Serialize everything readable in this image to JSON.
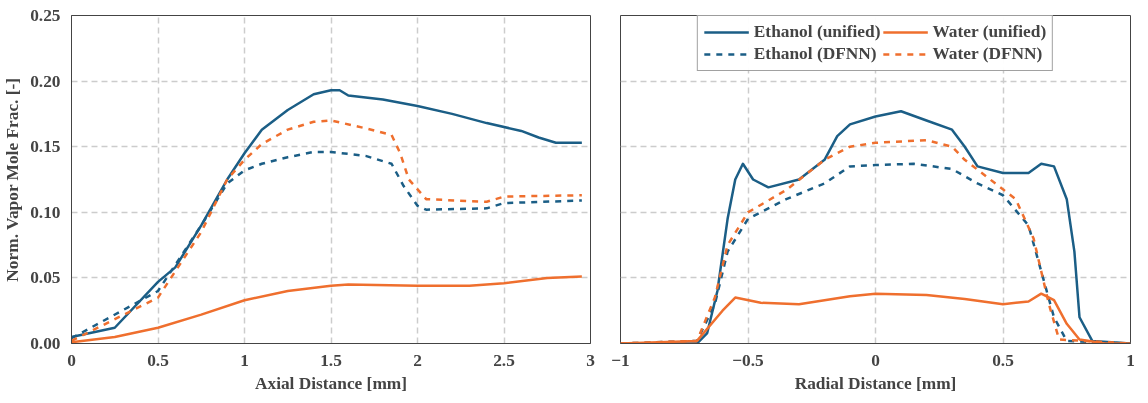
{
  "chart_data": [
    {
      "type": "line",
      "xlabel": "Axial Distance [mm]",
      "ylabel": "Norm. Vapor Mole Frac. [-]",
      "xlim": [
        0,
        3
      ],
      "xticks": [
        0,
        0.5,
        1,
        1.5,
        2,
        2.5,
        3
      ],
      "ylim": [
        0,
        0.25
      ],
      "yticks": [
        {
          "value": 0,
          "label": "0.00"
        },
        {
          "value": 0.05,
          "label": "0.05"
        },
        {
          "value": 0.1,
          "label": "0.10"
        },
        {
          "value": 0.15,
          "label": "0.15"
        },
        {
          "value": 0.2,
          "label": "0.20"
        },
        {
          "value": 0.25,
          "label": "0.25"
        }
      ],
      "grid": true,
      "legend": false,
      "series": [
        {
          "color": "#1b5e86",
          "line_style": "solid",
          "x": [
            0,
            0.25,
            0.5,
            0.6,
            0.75,
            0.9,
            1.0,
            1.1,
            1.25,
            1.4,
            1.5,
            1.55,
            1.6,
            1.8,
            2.0,
            2.2,
            2.4,
            2.6,
            2.7,
            2.8,
            2.95
          ],
          "values": [
            0.005,
            0.012,
            0.047,
            0.058,
            0.09,
            0.125,
            0.145,
            0.163,
            0.178,
            0.19,
            0.193,
            0.193,
            0.189,
            0.186,
            0.181,
            0.175,
            0.168,
            0.162,
            0.157,
            0.153,
            0.153
          ]
        },
        {
          "color": "#ef6f2e",
          "line_style": "solid",
          "x": [
            0,
            0.25,
            0.5,
            0.75,
            1.0,
            1.25,
            1.5,
            1.6,
            2.0,
            2.3,
            2.5,
            2.75,
            2.95
          ],
          "values": [
            0.001,
            0.005,
            0.012,
            0.022,
            0.033,
            0.04,
            0.044,
            0.045,
            0.044,
            0.044,
            0.046,
            0.05,
            0.051
          ]
        },
        {
          "color": "#1b5e86",
          "line_style": "dashed",
          "x": [
            0,
            0.5,
            0.75,
            0.9,
            1.0,
            1.1,
            1.25,
            1.4,
            1.5,
            1.7,
            1.85,
            1.92,
            2.0,
            2.05,
            2.4,
            2.5,
            2.95
          ],
          "values": [
            0.004,
            0.04,
            0.09,
            0.122,
            0.132,
            0.137,
            0.142,
            0.146,
            0.146,
            0.143,
            0.137,
            0.12,
            0.105,
            0.102,
            0.103,
            0.107,
            0.109
          ]
        },
        {
          "color": "#ef6f2e",
          "line_style": "dashed",
          "x": [
            0,
            0.5,
            0.75,
            0.9,
            1.0,
            1.1,
            1.25,
            1.4,
            1.5,
            1.7,
            1.85,
            1.9,
            1.95,
            2.05,
            2.4,
            2.5,
            2.95
          ],
          "values": [
            0.002,
            0.035,
            0.085,
            0.125,
            0.14,
            0.152,
            0.163,
            0.169,
            0.17,
            0.164,
            0.159,
            0.145,
            0.125,
            0.11,
            0.108,
            0.112,
            0.113
          ]
        }
      ]
    },
    {
      "type": "line",
      "xlabel": "Radial Distance [mm]",
      "xlim": [
        -1,
        1
      ],
      "xticks": [
        -1,
        -0.5,
        0,
        0.5,
        1
      ],
      "ylim": [
        0,
        0.25
      ],
      "yticks": [
        0,
        0.05,
        0.1,
        0.15,
        0.2,
        0.25
      ],
      "tick_labels": "x",
      "grid": true,
      "legend": "top",
      "series": [
        {
          "name": "Ethanol (unified)",
          "color": "#1b5e86",
          "line_style": "solid",
          "x": [
            -1,
            -0.7,
            -0.66,
            -0.62,
            -0.58,
            -0.55,
            -0.52,
            -0.48,
            -0.42,
            -0.3,
            -0.2,
            -0.15,
            -0.1,
            0,
            0.1,
            0.2,
            0.3,
            0.35,
            0.4,
            0.5,
            0.6,
            0.65,
            0.7,
            0.75,
            0.78,
            0.8,
            0.85,
            1.0
          ],
          "values": [
            0,
            0,
            0.008,
            0.04,
            0.095,
            0.125,
            0.137,
            0.125,
            0.119,
            0.125,
            0.14,
            0.158,
            0.167,
            0.173,
            0.177,
            0.17,
            0.163,
            0.15,
            0.135,
            0.13,
            0.13,
            0.137,
            0.135,
            0.11,
            0.07,
            0.02,
            0.002,
            0
          ]
        },
        {
          "name": "Ethanol (DFNN)",
          "color": "#1b5e86",
          "line_style": "dashed",
          "x": [
            -1,
            -0.7,
            -0.63,
            -0.58,
            -0.5,
            -0.35,
            -0.2,
            -0.1,
            0,
            0.15,
            0.3,
            0.4,
            0.5,
            0.6,
            0.65,
            0.7,
            0.75,
            1.0
          ],
          "values": [
            0,
            0.002,
            0.03,
            0.07,
            0.095,
            0.11,
            0.122,
            0.135,
            0.136,
            0.137,
            0.133,
            0.122,
            0.113,
            0.09,
            0.055,
            0.02,
            0.002,
            0
          ]
        },
        {
          "name": "Water (unified)",
          "color": "#ef6f2e",
          "line_style": "solid",
          "x": [
            -1,
            -0.7,
            -0.6,
            -0.55,
            -0.45,
            -0.3,
            -0.1,
            0,
            0.2,
            0.35,
            0.5,
            0.6,
            0.65,
            0.7,
            0.75,
            0.8,
            0.9,
            1.0
          ],
          "values": [
            0,
            0.002,
            0.025,
            0.035,
            0.031,
            0.03,
            0.036,
            0.038,
            0.037,
            0.034,
            0.03,
            0.032,
            0.038,
            0.033,
            0.015,
            0.003,
            0,
            0
          ]
        },
        {
          "name": "Water (DFNN)",
          "color": "#ef6f2e",
          "line_style": "dashed",
          "x": [
            -1,
            -0.7,
            -0.63,
            -0.58,
            -0.5,
            -0.35,
            -0.2,
            -0.1,
            0,
            0.2,
            0.3,
            0.35,
            0.45,
            0.55,
            0.62,
            0.68,
            0.72,
            1.0
          ],
          "values": [
            0,
            0.002,
            0.035,
            0.075,
            0.1,
            0.117,
            0.14,
            0.15,
            0.153,
            0.155,
            0.15,
            0.14,
            0.125,
            0.11,
            0.08,
            0.03,
            0.003,
            0
          ]
        }
      ]
    }
  ]
}
